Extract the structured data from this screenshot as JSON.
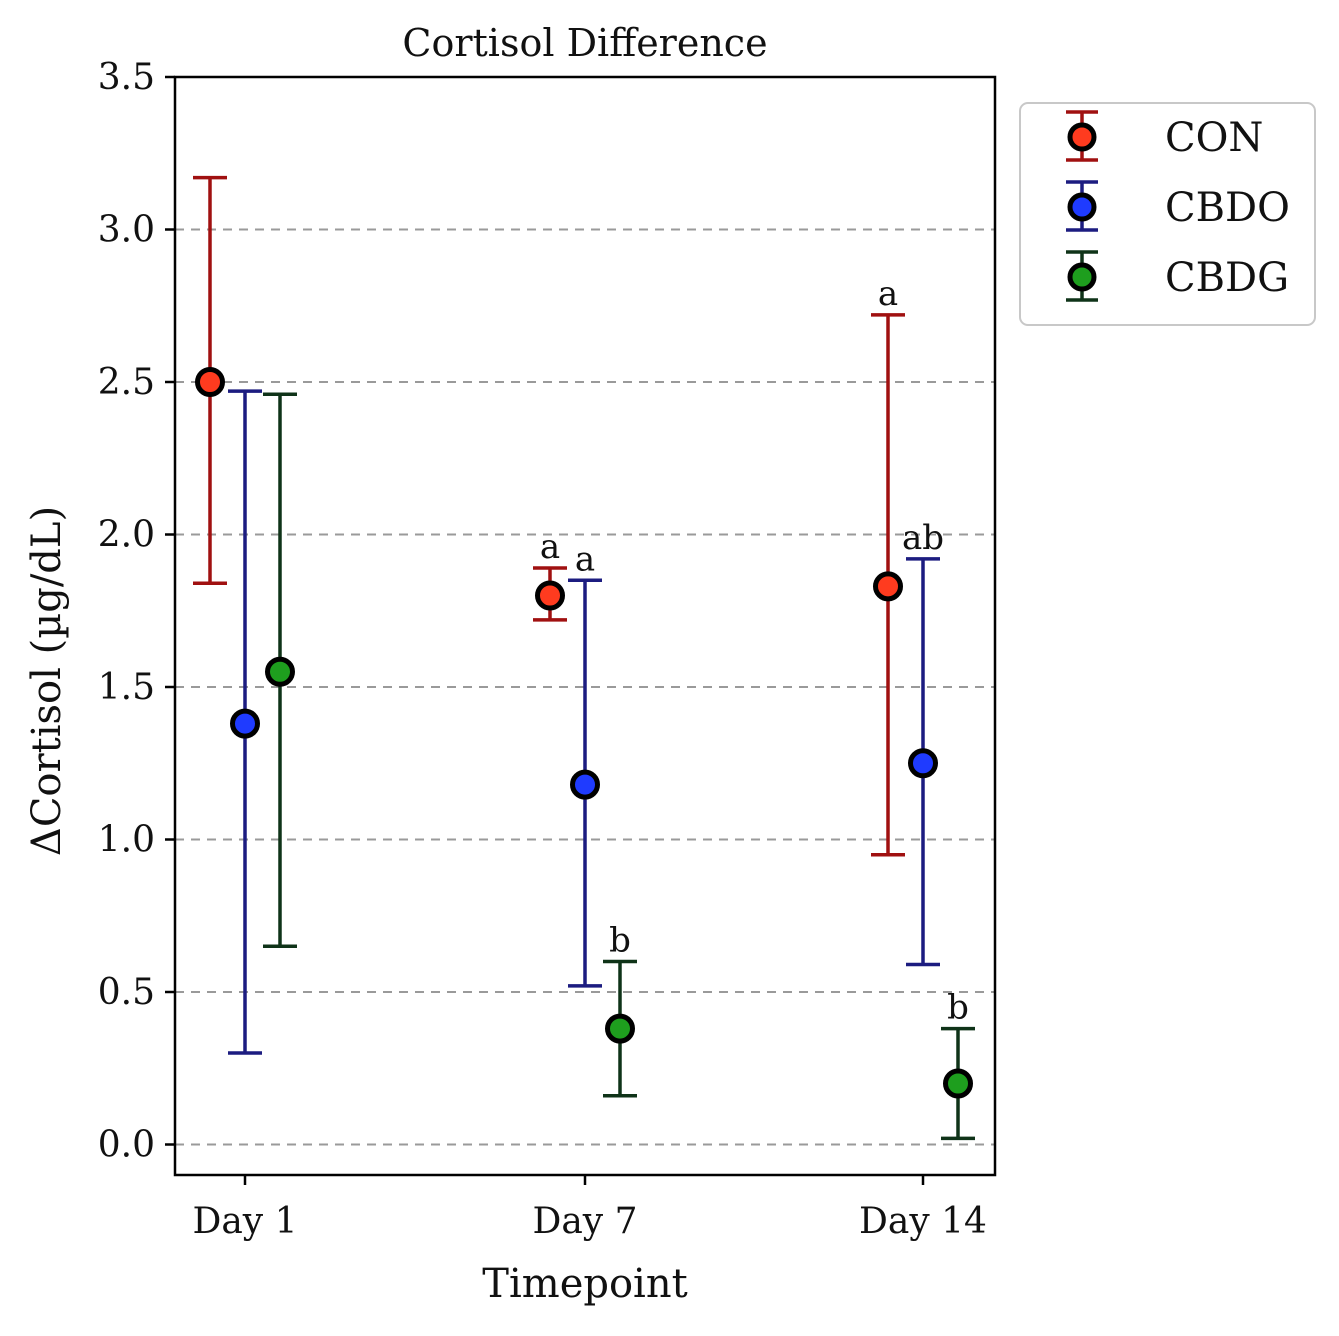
{
  "chart_data": {
    "type": "scatter",
    "title": "Cortisol Difference",
    "xlabel": "Timepoint",
    "ylabel": "ΔCortisol (µg/dL)",
    "categories": [
      "Day 1",
      "Day 7",
      "Day 14"
    ],
    "ylim": [
      -0.1,
      3.5
    ],
    "yticks": [
      0.0,
      0.5,
      1.0,
      1.5,
      2.0,
      2.5,
      3.0,
      3.5
    ],
    "ytick_labels": [
      "0.0",
      "0.5",
      "1.0",
      "1.5",
      "2.0",
      "2.5",
      "3.0",
      "3.5"
    ],
    "grid": "horizontal dashed",
    "legend_position": "outside top-right",
    "series": [
      {
        "name": "CON",
        "marker_color": "#ff3b1f",
        "error_color": "#a01010",
        "values": [
          2.5,
          1.8,
          1.83
        ],
        "error_low": [
          1.84,
          1.72,
          0.95
        ],
        "error_high": [
          3.17,
          1.89,
          2.72
        ],
        "labels": [
          "",
          "a",
          "a"
        ]
      },
      {
        "name": "CBDO",
        "marker_color": "#1f3bff",
        "error_color": "#1c1c80",
        "values": [
          1.38,
          1.18,
          1.25
        ],
        "error_low": [
          0.3,
          0.52,
          0.59
        ],
        "error_high": [
          2.47,
          1.85,
          1.92
        ],
        "labels": [
          "",
          "a",
          "ab"
        ]
      },
      {
        "name": "CBDG",
        "marker_color": "#1e9e1e",
        "error_color": "#0f3318",
        "values": [
          1.55,
          0.38,
          0.2
        ],
        "error_low": [
          0.65,
          0.16,
          0.02
        ],
        "error_high": [
          2.46,
          0.6,
          0.38
        ],
        "labels": [
          "",
          "b",
          "b"
        ]
      }
    ]
  }
}
